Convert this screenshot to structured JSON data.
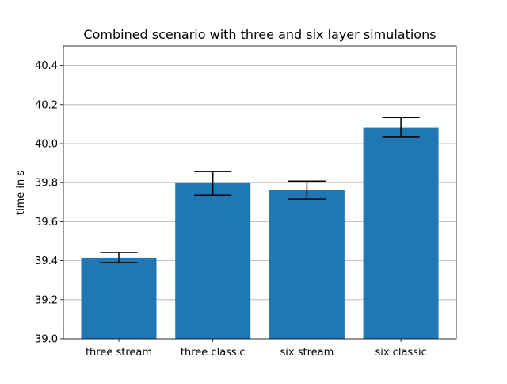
{
  "chart_data": {
    "type": "bar",
    "title": "Combined scenario with three and six layer simulations",
    "xlabel": "",
    "ylabel": "time in s",
    "categories": [
      "three stream",
      "three classic",
      "six stream",
      "six classic"
    ],
    "values": [
      39.415,
      39.797,
      39.762,
      40.083
    ],
    "error_low": [
      39.39,
      39.735,
      39.715,
      40.033
    ],
    "error_high": [
      39.443,
      39.857,
      39.808,
      40.133
    ],
    "ylim": [
      39.0,
      40.5
    ],
    "yticks": [
      "39.0",
      "39.2",
      "39.4",
      "39.6",
      "39.8",
      "40.0",
      "40.2",
      "40.4"
    ],
    "ytick_values": [
      39.0,
      39.2,
      39.4,
      39.6,
      39.8,
      40.0,
      40.2,
      40.4
    ],
    "grid": "y",
    "bar_color": "#1f77b4",
    "error_color": "#000000",
    "grid_color": "#b0b0b0"
  }
}
